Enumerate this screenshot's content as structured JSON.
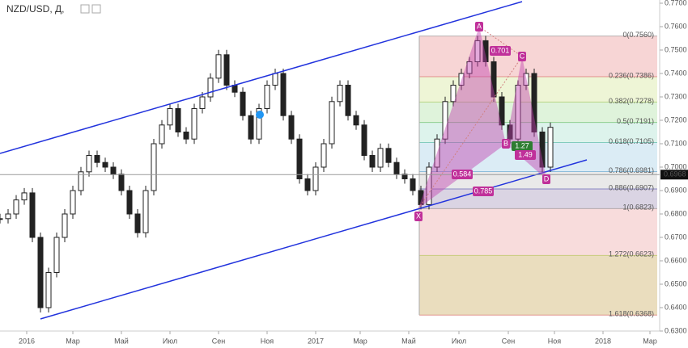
{
  "header": {
    "title": "NZD/USD, Д,"
  },
  "price_axis": [
    "0.7700",
    "0.7600",
    "0.7500",
    "0.7400",
    "0.7300",
    "0.7200",
    "0.7100",
    "0.7000",
    "0.6900",
    "0.6800",
    "0.6700",
    "0.6600",
    "0.6500",
    "0.6400",
    "0.6300"
  ],
  "time_axis": [
    "2016",
    "Мар",
    "Май",
    "Июл",
    "Сен",
    "Ноя",
    "2017",
    "Мар",
    "Май",
    "Июл",
    "Сен",
    "Ноя",
    "2018",
    "Мар"
  ],
  "current_price": "0.6968",
  "prices": [
    0.678,
    0.68,
    0.686,
    0.689,
    0.67,
    0.64,
    0.655,
    0.67,
    0.68,
    0.69,
    0.698,
    0.705,
    0.702,
    0.7,
    0.697,
    0.69,
    0.68,
    0.672,
    0.69,
    0.71,
    0.718,
    0.725,
    0.715,
    0.712,
    0.725,
    0.73,
    0.738,
    0.748,
    0.735,
    0.732,
    0.722,
    0.712,
    0.725,
    0.735,
    0.74,
    0.722,
    0.712,
    0.695,
    0.69,
    0.7,
    0.71,
    0.728,
    0.735,
    0.722,
    0.718,
    0.705,
    0.7,
    0.708,
    0.702,
    0.697,
    0.695,
    0.69,
    0.684,
    0.7,
    0.712,
    0.728,
    0.735,
    0.74,
    0.745,
    0.754,
    0.745,
    0.73,
    0.718,
    0.712,
    0.735,
    0.74,
    0.715,
    0.7,
    0.717
  ],
  "fib": [
    {
      "label": "0(0.7560)",
      "price": 0.756,
      "color": "#f4c7c7",
      "text": "#777"
    },
    {
      "label": "0.236(0.7386)",
      "price": 0.7386,
      "color": "#e8f2c8",
      "text": "#d04040"
    },
    {
      "label": "0.382(0.7278)",
      "price": 0.7278,
      "color": "#d4efcf",
      "text": "#8ab830"
    },
    {
      "label": "0.5(0.7191)",
      "price": 0.7191,
      "color": "#d2efe6",
      "text": "#3cae3c"
    },
    {
      "label": "0.618(0.7105)",
      "price": 0.7105,
      "color": "#cfe6f2",
      "text": "#2aa88a"
    },
    {
      "label": "0.786(0.6981)",
      "price": 0.6981,
      "color": "#e2e2e2",
      "text": "#3a8fc8"
    },
    {
      "label": "0.886(0.6907)",
      "price": 0.6907,
      "color": "#cdc6da",
      "text": "#3030a0"
    },
    {
      "label": "1(0.6823)",
      "price": 0.6823,
      "color": "#f6d0d0",
      "text": "#777"
    },
    {
      "label": "1.272(0.6623)",
      "price": 0.6623,
      "color": "#e3d2a8",
      "text": "#a0b830"
    },
    {
      "label": "1.618(0.6368)",
      "price": 0.6368,
      "color": "none",
      "text": "#d04040"
    }
  ],
  "pattern": {
    "points": [
      "X",
      "A",
      "B",
      "C",
      "D"
    ],
    "ratios": [
      "0.701",
      "0.584",
      "0.785",
      "1.27",
      "1.49"
    ]
  }
}
